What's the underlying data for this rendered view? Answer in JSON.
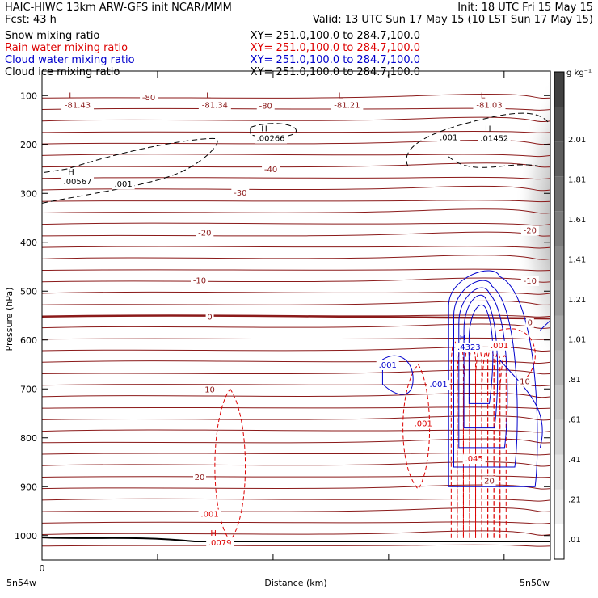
{
  "header": {
    "line1_left": "HAIC-HIWC 13km ARW-GFS init    NCAR/MMM",
    "line1_right": "Init: 18 UTC Fri 15 May 15",
    "line2_left": "Fcst:    43 h",
    "line2_right": "Valid: 13 UTC Sun 17 May 15 (10 LST Sun 17 May 15)",
    "fields": [
      {
        "name": "Snow mixing ratio",
        "xy": "XY= 251.0,100.0 to 284.7,100.0",
        "color": "#000000"
      },
      {
        "name": "Rain water mixing ratio",
        "xy": "XY= 251.0,100.0 to 284.7,100.0",
        "color": "#dd0000"
      },
      {
        "name": "Cloud water mixing ratio",
        "xy": "XY= 251.0,100.0 to 284.7,100.0",
        "color": "#0000cc"
      },
      {
        "name": "Cloud ice mixing ratio",
        "xy": "XY= 251.0,100.0 to 284.7,100.0",
        "color": "#000000"
      }
    ]
  },
  "chart_data": {
    "type": "cross-section",
    "ylabel": "Pressure (hPa)",
    "xlabel": "Distance (km)",
    "y_reversed": true,
    "ylim": [
      1050,
      50
    ],
    "y_ticks": [
      100,
      200,
      300,
      400,
      500,
      600,
      700,
      800,
      900,
      1000
    ],
    "x_tick_labels": [
      "0"
    ],
    "x_end_labels": [
      "5n54w",
      "5n50w"
    ],
    "colorbar": {
      "unit": "g kg⁻¹",
      "levels": [
        ".01",
        ".21",
        ".41",
        ".61",
        ".81",
        "1.01",
        "1.21",
        "1.41",
        "1.61",
        "1.81",
        "2.01"
      ]
    },
    "temperature_labels": [
      {
        "value": "-80",
        "x": 0.21,
        "p": 103
      },
      {
        "value": "-80",
        "x": 0.44,
        "p": 120
      },
      {
        "value": "-40",
        "x": 0.45,
        "p": 250
      },
      {
        "value": "-30",
        "x": 0.39,
        "p": 298
      },
      {
        "value": "-20",
        "x": 0.32,
        "p": 380
      },
      {
        "value": "-20",
        "x": 0.96,
        "p": 375
      },
      {
        "value": "-10",
        "x": 0.31,
        "p": 477
      },
      {
        "value": "-10",
        "x": 0.96,
        "p": 478
      },
      {
        "value": "0",
        "x": 0.33,
        "p": 552
      },
      {
        "value": "0",
        "x": 0.96,
        "p": 563
      },
      {
        "value": "10",
        "x": 0.33,
        "p": 700
      },
      {
        "value": "10",
        "x": 0.95,
        "p": 684
      },
      {
        "value": "20",
        "x": 0.31,
        "p": 880
      },
      {
        "value": "20",
        "x": 0.88,
        "p": 887
      }
    ],
    "extrema_labels": [
      {
        "letter": "L",
        "value": "-81.43",
        "x": 0.07,
        "p": 112
      },
      {
        "letter": "L",
        "value": "-81.34",
        "x": 0.34,
        "p": 112
      },
      {
        "letter": "L",
        "value": "-81.21",
        "x": 0.6,
        "p": 112
      },
      {
        "letter": "L",
        "value": "-81.03",
        "x": 0.88,
        "p": 112
      },
      {
        "letter": "H",
        "value": ".00266",
        "x": 0.45,
        "p": 180
      },
      {
        "letter": "H",
        "value": ".01452",
        "x": 0.89,
        "p": 180
      },
      {
        "letter": "H",
        "value": ".00567",
        "x": 0.07,
        "p": 268
      },
      {
        "letter": "H",
        "value": ".4323",
        "x": 0.84,
        "p": 607
      },
      {
        "letter": "H",
        "value": ".0079",
        "x": 0.35,
        "p": 1007
      }
    ],
    "contour_labels": [
      {
        "field": "snow",
        "value": ".001",
        "x": 0.16,
        "p": 280
      },
      {
        "field": "snow",
        "value": ".001",
        "x": 0.8,
        "p": 185
      },
      {
        "field": "cloud_water",
        "value": ".001",
        "x": 0.68,
        "p": 650
      },
      {
        "field": "cloud_water",
        "value": ".001",
        "x": 0.78,
        "p": 690
      },
      {
        "field": "rain",
        "value": ".001",
        "x": 0.75,
        "p": 770
      },
      {
        "field": "rain",
        "value": ".001",
        "x": 0.33,
        "p": 955
      },
      {
        "field": "rain",
        "value": ".001",
        "x": 0.9,
        "p": 610
      },
      {
        "field": "rain",
        "value": ".045",
        "x": 0.85,
        "p": 842
      }
    ]
  }
}
